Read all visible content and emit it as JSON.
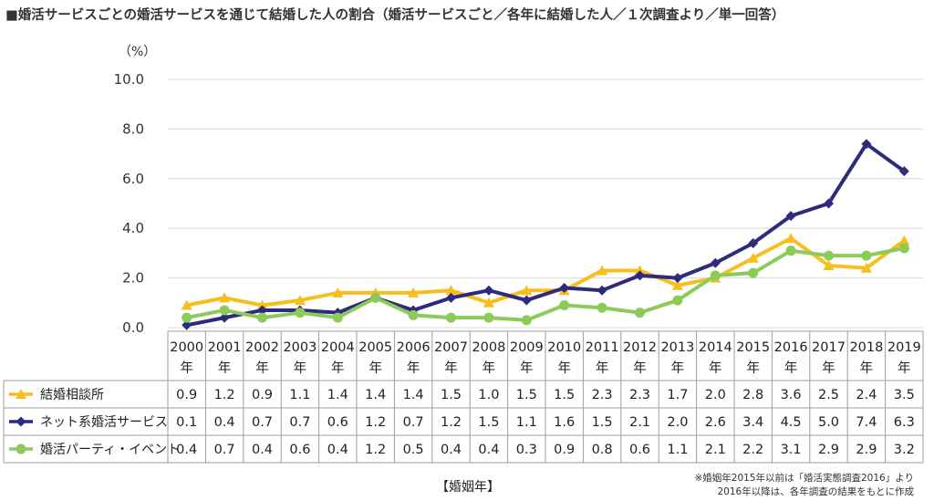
{
  "title": "■婚活サービスごとの婚活サービスを通じて結婚した人の割合（婚活サービスごと／各年に結婚した人／１次調査より／単一回答）",
  "unit": "（%）",
  "xlabel": "【婚姻年】",
  "notes": [
    "※婚姻年2015年以前は「婚活実態調査2016」より",
    "2016年以降は、各年調査の結果をもとに作成"
  ],
  "colors": {
    "series0": "#F7BE1E",
    "series1": "#2E2A7E",
    "series2": "#8CCB5A"
  },
  "chart_data": {
    "type": "line",
    "categories": [
      "2000",
      "2001",
      "2002",
      "2003",
      "2004",
      "2005",
      "2006",
      "2007",
      "2008",
      "2009",
      "2010",
      "2011",
      "2012",
      "2013",
      "2014",
      "2015",
      "2016",
      "2017",
      "2018",
      "2019"
    ],
    "category_suffix": "年",
    "yticks": [
      "0.0",
      "2.0",
      "4.0",
      "6.0",
      "8.0",
      "10.0"
    ],
    "ylim": [
      0,
      10
    ],
    "series": [
      {
        "name": "結婚相談所",
        "marker": "triangle",
        "values": [
          0.9,
          1.2,
          0.9,
          1.1,
          1.4,
          1.4,
          1.4,
          1.5,
          1.0,
          1.5,
          1.5,
          2.3,
          2.3,
          1.7,
          2.0,
          2.8,
          3.6,
          2.5,
          2.4,
          3.5
        ],
        "labels": [
          "0.9",
          "1.2",
          "0.9",
          "1.1",
          "1.4",
          "1.4",
          "1.4",
          "1.5",
          "1.0",
          "1.5",
          "1.5",
          "2.3",
          "2.3",
          "1.7",
          "2.0",
          "2.8",
          "3.6",
          "2.5",
          "2.4",
          "3.5"
        ]
      },
      {
        "name": "ネット系婚活サービス",
        "marker": "diamond",
        "values": [
          0.1,
          0.4,
          0.7,
          0.7,
          0.6,
          1.2,
          0.7,
          1.2,
          1.5,
          1.1,
          1.6,
          1.5,
          2.1,
          2.0,
          2.6,
          3.4,
          4.5,
          5.0,
          7.4,
          6.3
        ],
        "labels": [
          "0.1",
          "0.4",
          "0.7",
          "0.7",
          "0.6",
          "1.2",
          "0.7",
          "1.2",
          "1.5",
          "1.1",
          "1.6",
          "1.5",
          "2.1",
          "2.0",
          "2.6",
          "3.4",
          "4.5",
          "5.0",
          "7.4",
          "6.3"
        ]
      },
      {
        "name": "婚活パーティ・イベント",
        "marker": "circle",
        "values": [
          0.4,
          0.7,
          0.4,
          0.6,
          0.4,
          1.2,
          0.5,
          0.4,
          0.4,
          0.3,
          0.9,
          0.8,
          0.6,
          1.1,
          2.1,
          2.2,
          3.1,
          2.9,
          2.9,
          3.2
        ],
        "labels": [
          "0.4",
          "0.7",
          "0.4",
          "0.6",
          "0.4",
          "1.2",
          "0.5",
          "0.4",
          "0.4",
          "0.3",
          "0.9",
          "0.8",
          "0.6",
          "1.1",
          "2.1",
          "2.2",
          "3.1",
          "2.9",
          "2.9",
          "3.2"
        ]
      }
    ]
  }
}
